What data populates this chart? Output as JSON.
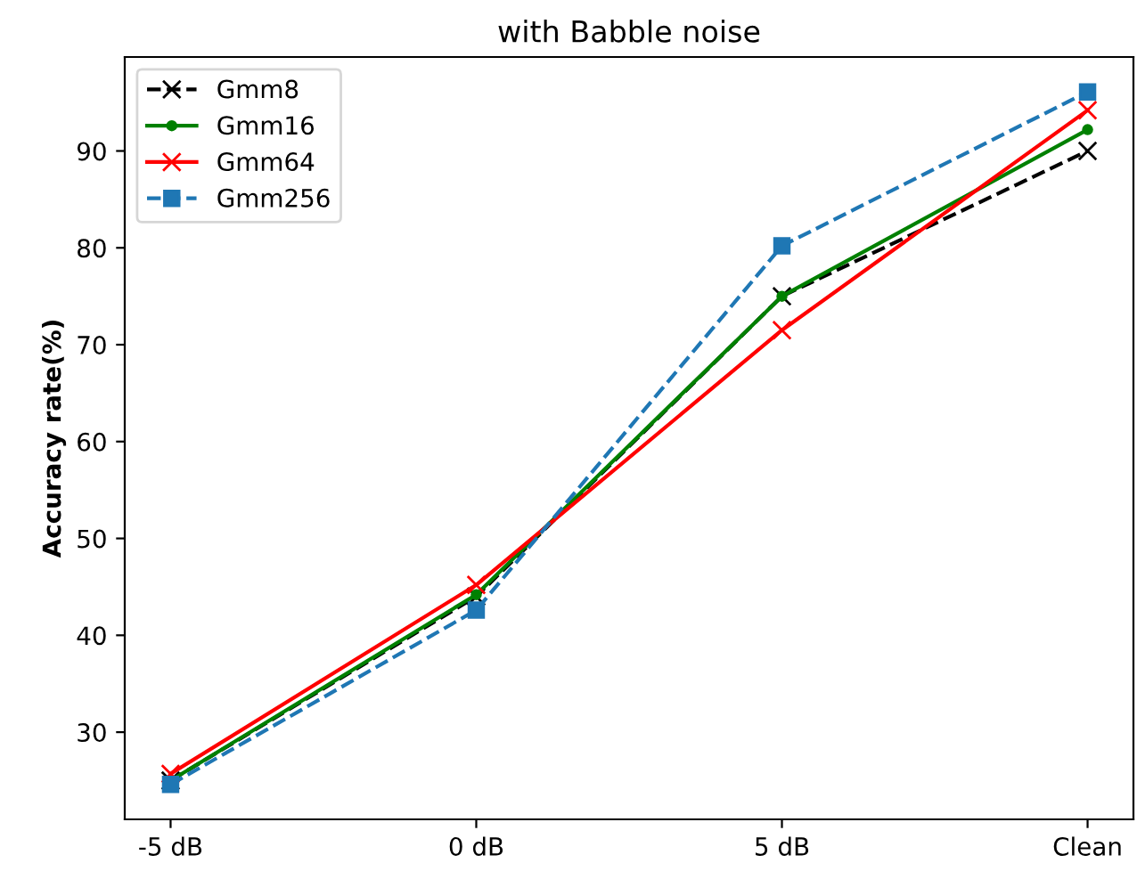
{
  "chart_data": {
    "type": "line",
    "title": "with Babble noise",
    "ylabel": "Accuracy rate(%)",
    "categories": [
      "-5 dB",
      "0 dB",
      "5 dB",
      "Clean"
    ],
    "series": [
      {
        "name": "Gmm8",
        "color": "#000000",
        "marker": "cross",
        "line_style": "dashed",
        "values": [
          25.0,
          44.0,
          75.0,
          90.0
        ]
      },
      {
        "name": "Gmm16",
        "color": "#008000",
        "marker": "circle",
        "line_style": "solid",
        "values": [
          25.0,
          44.2,
          75.0,
          92.2
        ]
      },
      {
        "name": "Gmm64",
        "color": "#ff0000",
        "marker": "cross",
        "line_style": "solid",
        "values": [
          25.7,
          45.2,
          71.5,
          94.2
        ]
      },
      {
        "name": "Gmm256",
        "color": "#1f77b4",
        "marker": "square",
        "line_style": "dashed",
        "values": [
          24.6,
          42.6,
          80.2,
          96.1
        ]
      }
    ],
    "ylim": [
      21.0,
      99.7
    ],
    "yticks": [
      30,
      40,
      50,
      60,
      70,
      80,
      90
    ],
    "grid": false,
    "legend": "top left"
  }
}
